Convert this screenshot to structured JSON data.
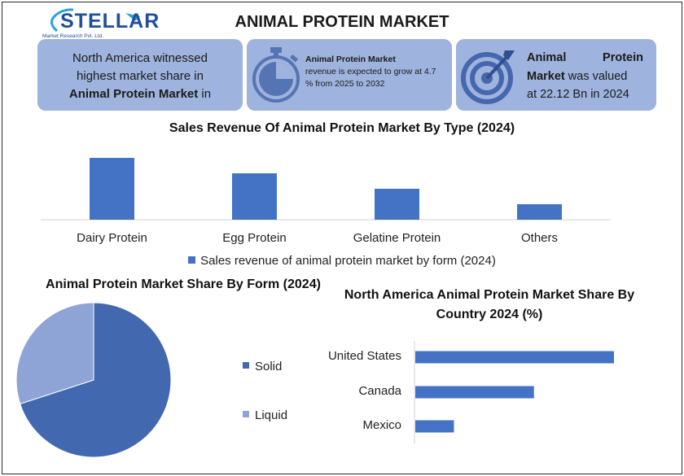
{
  "logo": {
    "name": "STELLAR",
    "tagline": "Market Research Pvt. Ltd."
  },
  "title": "ANIMAL PROTEIN MARKET",
  "cards": {
    "card1": {
      "line1": "North America witnessed",
      "line2": "highest market share in",
      "bold": "Animal Protein Market",
      "suffix": " in"
    },
    "card2": {
      "bold": "Animal Protein Market",
      "rest": "revenue is expected to grow at 4.7 % from 2025 to 2032",
      "icon": "stopwatch-icon"
    },
    "card3": {
      "bold1": "Animal",
      "bold2": "Protein",
      "bold3": "Market",
      "rest1": " was valued",
      "rest2": "at 22.12 Bn in 2024",
      "icon": "target-icon"
    }
  },
  "colors": {
    "card_bg": "#9eb3dd",
    "bar": "#4472c4",
    "pie_solid": "#4268b0",
    "pie_liquid": "#8fa4d6",
    "brand": "#1f4e9c"
  },
  "chart_data": [
    {
      "type": "bar",
      "title": "Sales Revenue Of Animal Protein Market By Type (2024)",
      "categories": [
        "Dairy Protein",
        "Egg Protein",
        "Gelatine Protein",
        "Others"
      ],
      "series": [
        {
          "name": "Sales revenue of animal protein market by form (2024)",
          "values": [
            40,
            30,
            20,
            10
          ]
        }
      ],
      "ylim": [
        0,
        40
      ],
      "grid": false,
      "legend": "bottom"
    },
    {
      "type": "pie",
      "title": "Animal Protein Market Share By Form (2024)",
      "labels": [
        "Solid",
        "Liquid"
      ],
      "values": [
        70,
        30
      ],
      "legend": "right"
    },
    {
      "type": "bar",
      "orientation": "horizontal",
      "title": "North America Animal Protein Market Share By Country 2024 (%)",
      "categories": [
        "United States",
        "Canada",
        "Mexico"
      ],
      "values": [
        72,
        43,
        14
      ],
      "xlim": [
        0,
        72
      ],
      "grid": false
    }
  ]
}
